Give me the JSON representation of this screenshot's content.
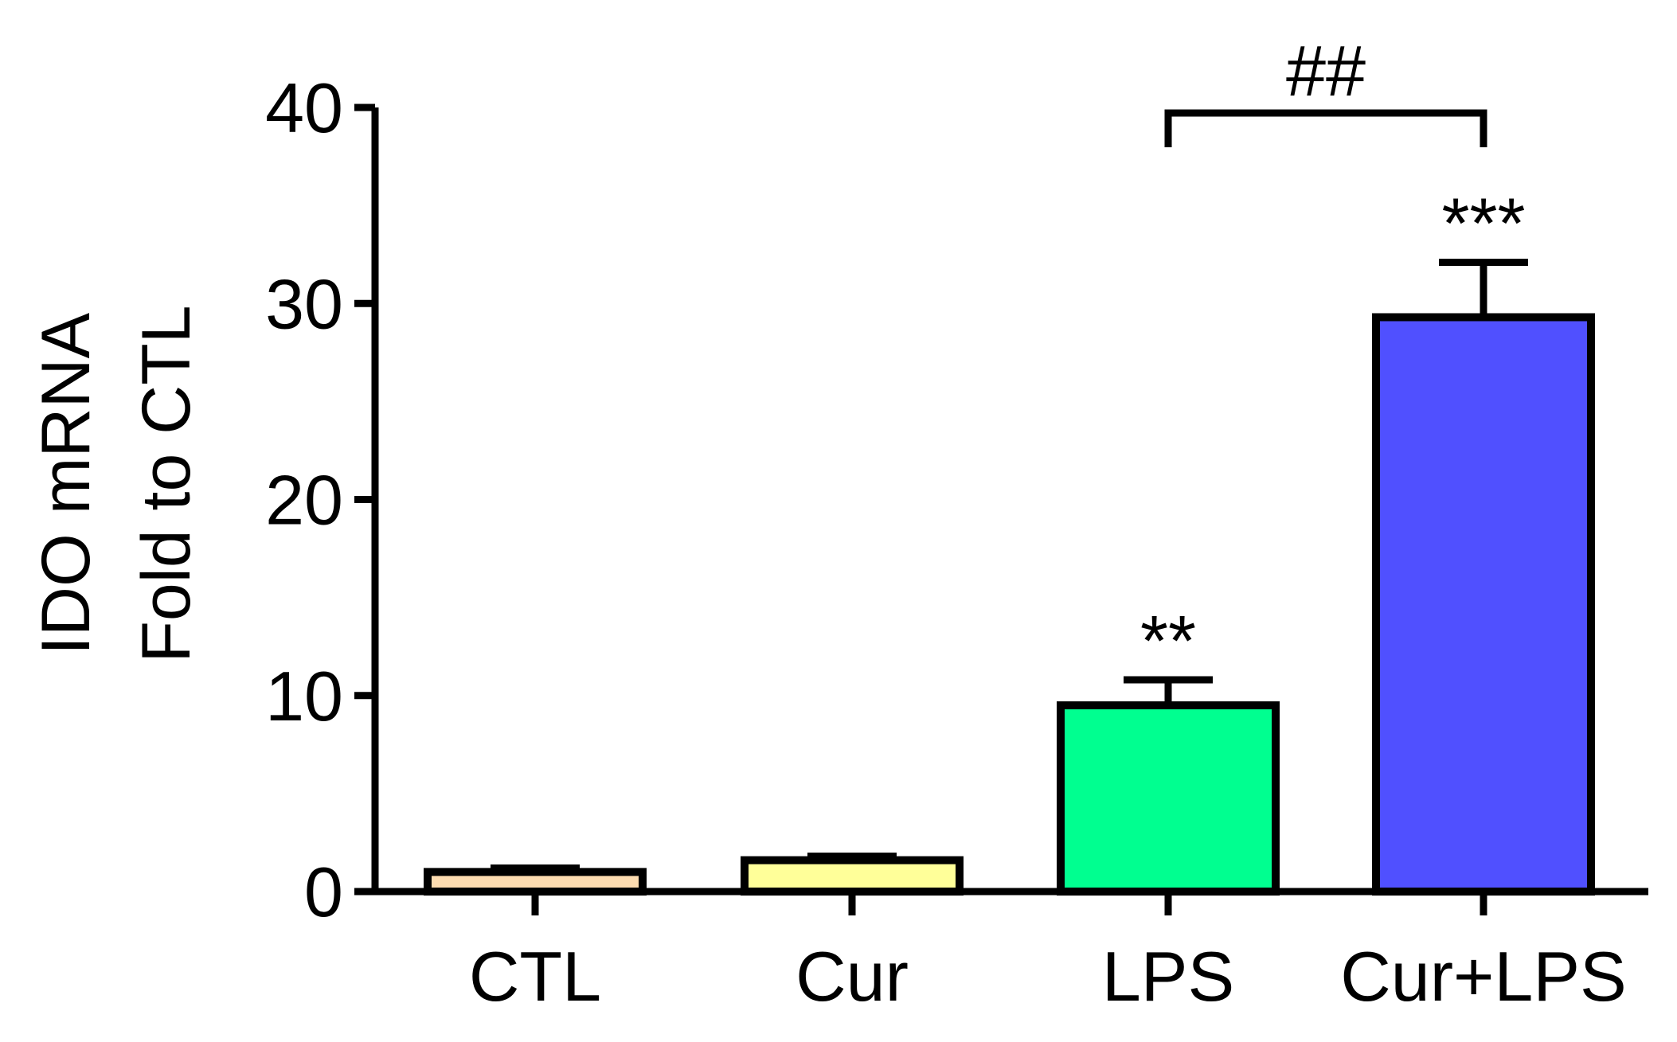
{
  "chart_data": {
    "type": "bar",
    "title": "",
    "ylabel": [
      "IDO mRNA",
      "Fold to CTL"
    ],
    "xlabel": "",
    "ylim": [
      0,
      40
    ],
    "yticks": [
      0,
      10,
      20,
      30,
      40
    ],
    "categories": [
      "CTL",
      "Cur",
      "LPS",
      "Cur+LPS"
    ],
    "values": [
      1.0,
      1.6,
      9.5,
      29.3
    ],
    "errors": [
      0.2,
      0.2,
      1.3,
      2.8
    ],
    "colors": [
      "#FDDCB0",
      "#FFFF99",
      "#00FF90",
      "#5050FF"
    ],
    "significance": [
      "",
      "",
      "**",
      "***"
    ],
    "comparison": {
      "from": "LPS",
      "to": "Cur+LPS",
      "label": "##"
    }
  }
}
